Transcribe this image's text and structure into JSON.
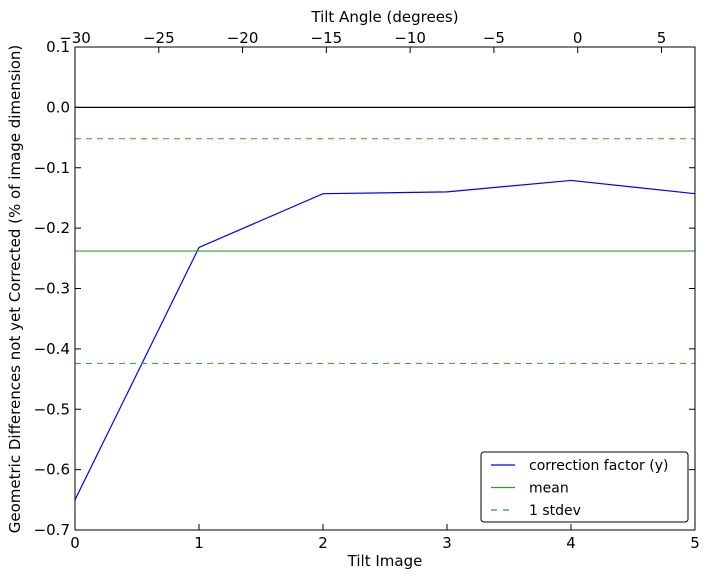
{
  "chart_data": {
    "type": "line",
    "xlabel": "Tilt Image",
    "ylabel": "Geometric Differences not yet Corrected (% of image dimension)",
    "top_xlabel": "Tilt Angle (degrees)",
    "xlim": [
      0,
      5
    ],
    "ylim": [
      -0.7,
      0.1
    ],
    "top_xlim": [
      -30,
      7
    ],
    "x_ticks": [
      0,
      1,
      2,
      3,
      4,
      5
    ],
    "x_tick_labels": [
      "0",
      "1",
      "2",
      "3",
      "4",
      "5"
    ],
    "y_ticks": [
      0.1,
      0.0,
      -0.1,
      -0.2,
      -0.3,
      -0.4,
      -0.5,
      -0.6,
      -0.7
    ],
    "y_tick_labels": [
      "0.1",
      "0.0",
      "−0.1",
      "−0.2",
      "−0.3",
      "−0.4",
      "−0.5",
      "−0.6",
      "−0.7"
    ],
    "top_x_ticks": [
      -30,
      -25,
      -20,
      -15,
      -10,
      -5,
      0,
      5
    ],
    "top_x_tick_labels": [
      "−30",
      "−25",
      "−20",
      "−15",
      "−10",
      "−5",
      "0",
      "5"
    ],
    "zero_line": 0.0,
    "series": [
      {
        "name": "correction factor (y)",
        "color": "#0000ff",
        "style": "solid",
        "x": [
          0,
          1,
          2,
          3,
          4,
          5
        ],
        "values": [
          -0.65,
          -0.232,
          -0.143,
          -0.14,
          -0.121,
          -0.143
        ]
      },
      {
        "name": "mean",
        "color": "#2ca02c",
        "style": "solid",
        "x": [
          0,
          5
        ],
        "values": [
          -0.238,
          -0.238
        ]
      },
      {
        "name": "1 stdev",
        "color": "#2ca02c",
        "style": "dashed",
        "hlines": [
          -0.052,
          -0.424
        ]
      }
    ],
    "legend": "lower-right",
    "grid": false
  }
}
